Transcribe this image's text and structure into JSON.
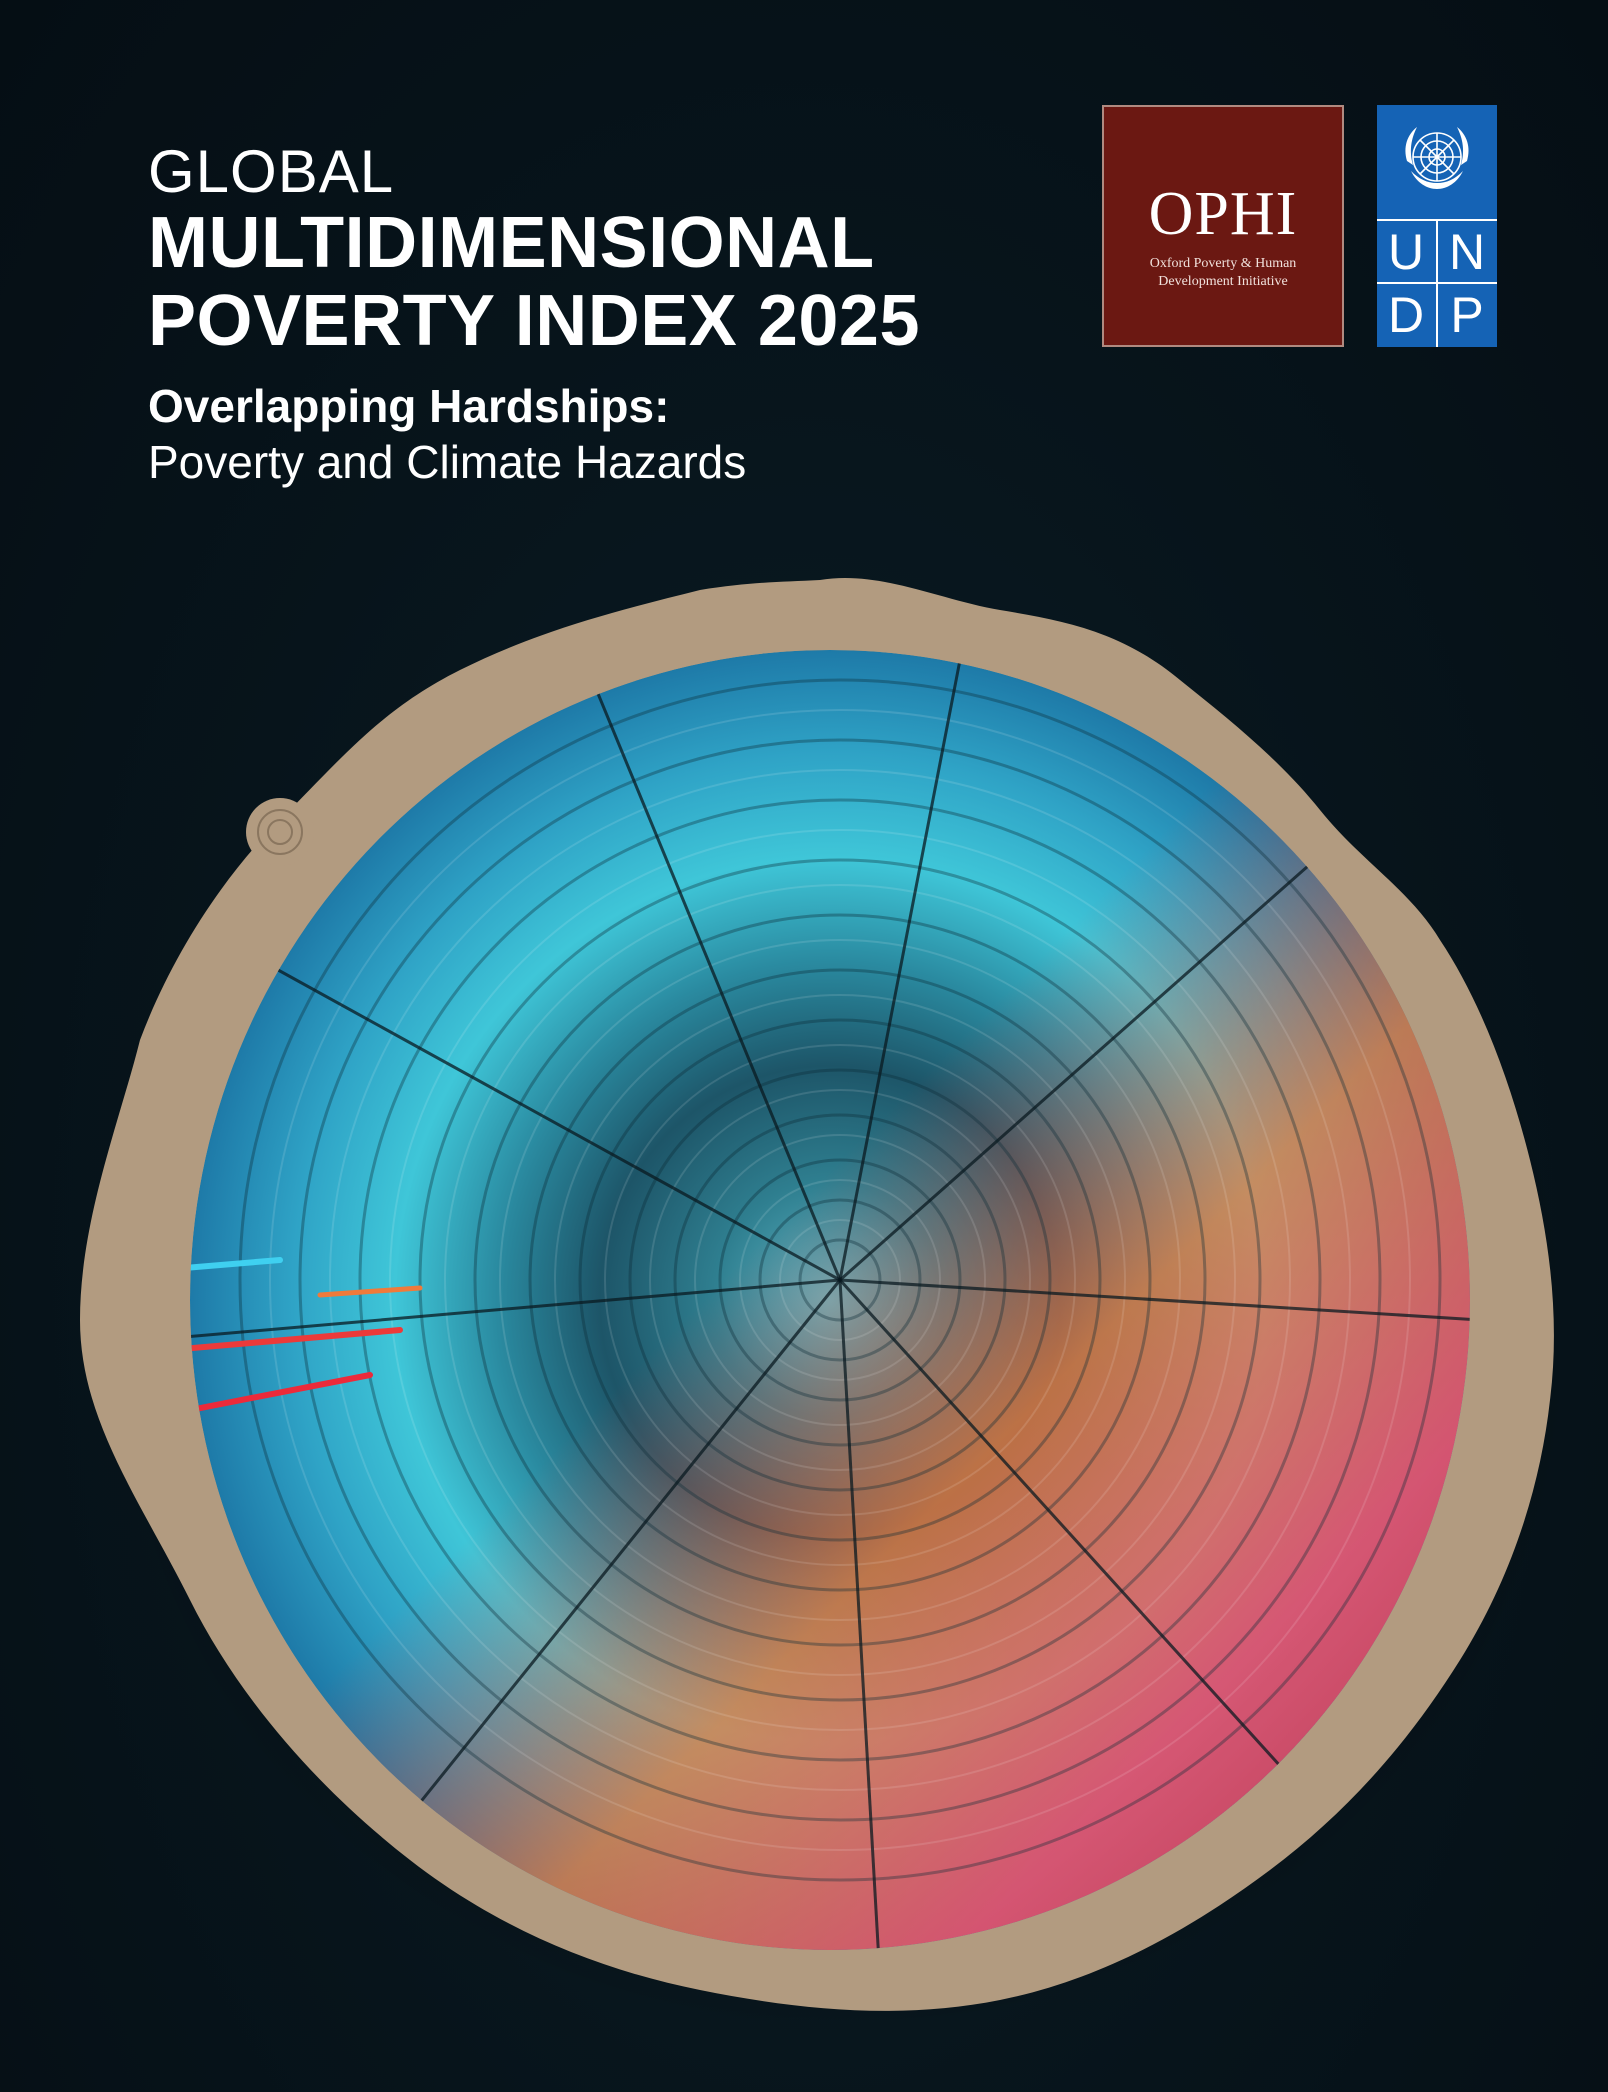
{
  "cover": {
    "title_pre": "GLOBAL",
    "title_line1": "MULTIDIMENSIONAL",
    "title_line2": "POVERTY INDEX 2025",
    "subtitle_bold": "Overlapping Hardships:",
    "subtitle_light": "Poverty and Climate Hazards"
  },
  "logos": {
    "ophi": {
      "name": "OPHI",
      "line1": "Oxford Poverty & Human",
      "line2": "Development Initiative",
      "background": "#6b1812"
    },
    "undp": {
      "letters": [
        "U",
        "N",
        "D",
        "P"
      ],
      "background": "#1563b5",
      "emblem": "un-emblem-icon"
    }
  },
  "artwork": {
    "description_icon": "tree-ring-icon",
    "colors": {
      "wood": "#b29b80",
      "core": "#2a6f80",
      "cyan": "#3fc6d8",
      "red": "#ec4a42",
      "orange": "#f07a3a",
      "pink": "#e8506b",
      "background": "#07141b"
    }
  }
}
